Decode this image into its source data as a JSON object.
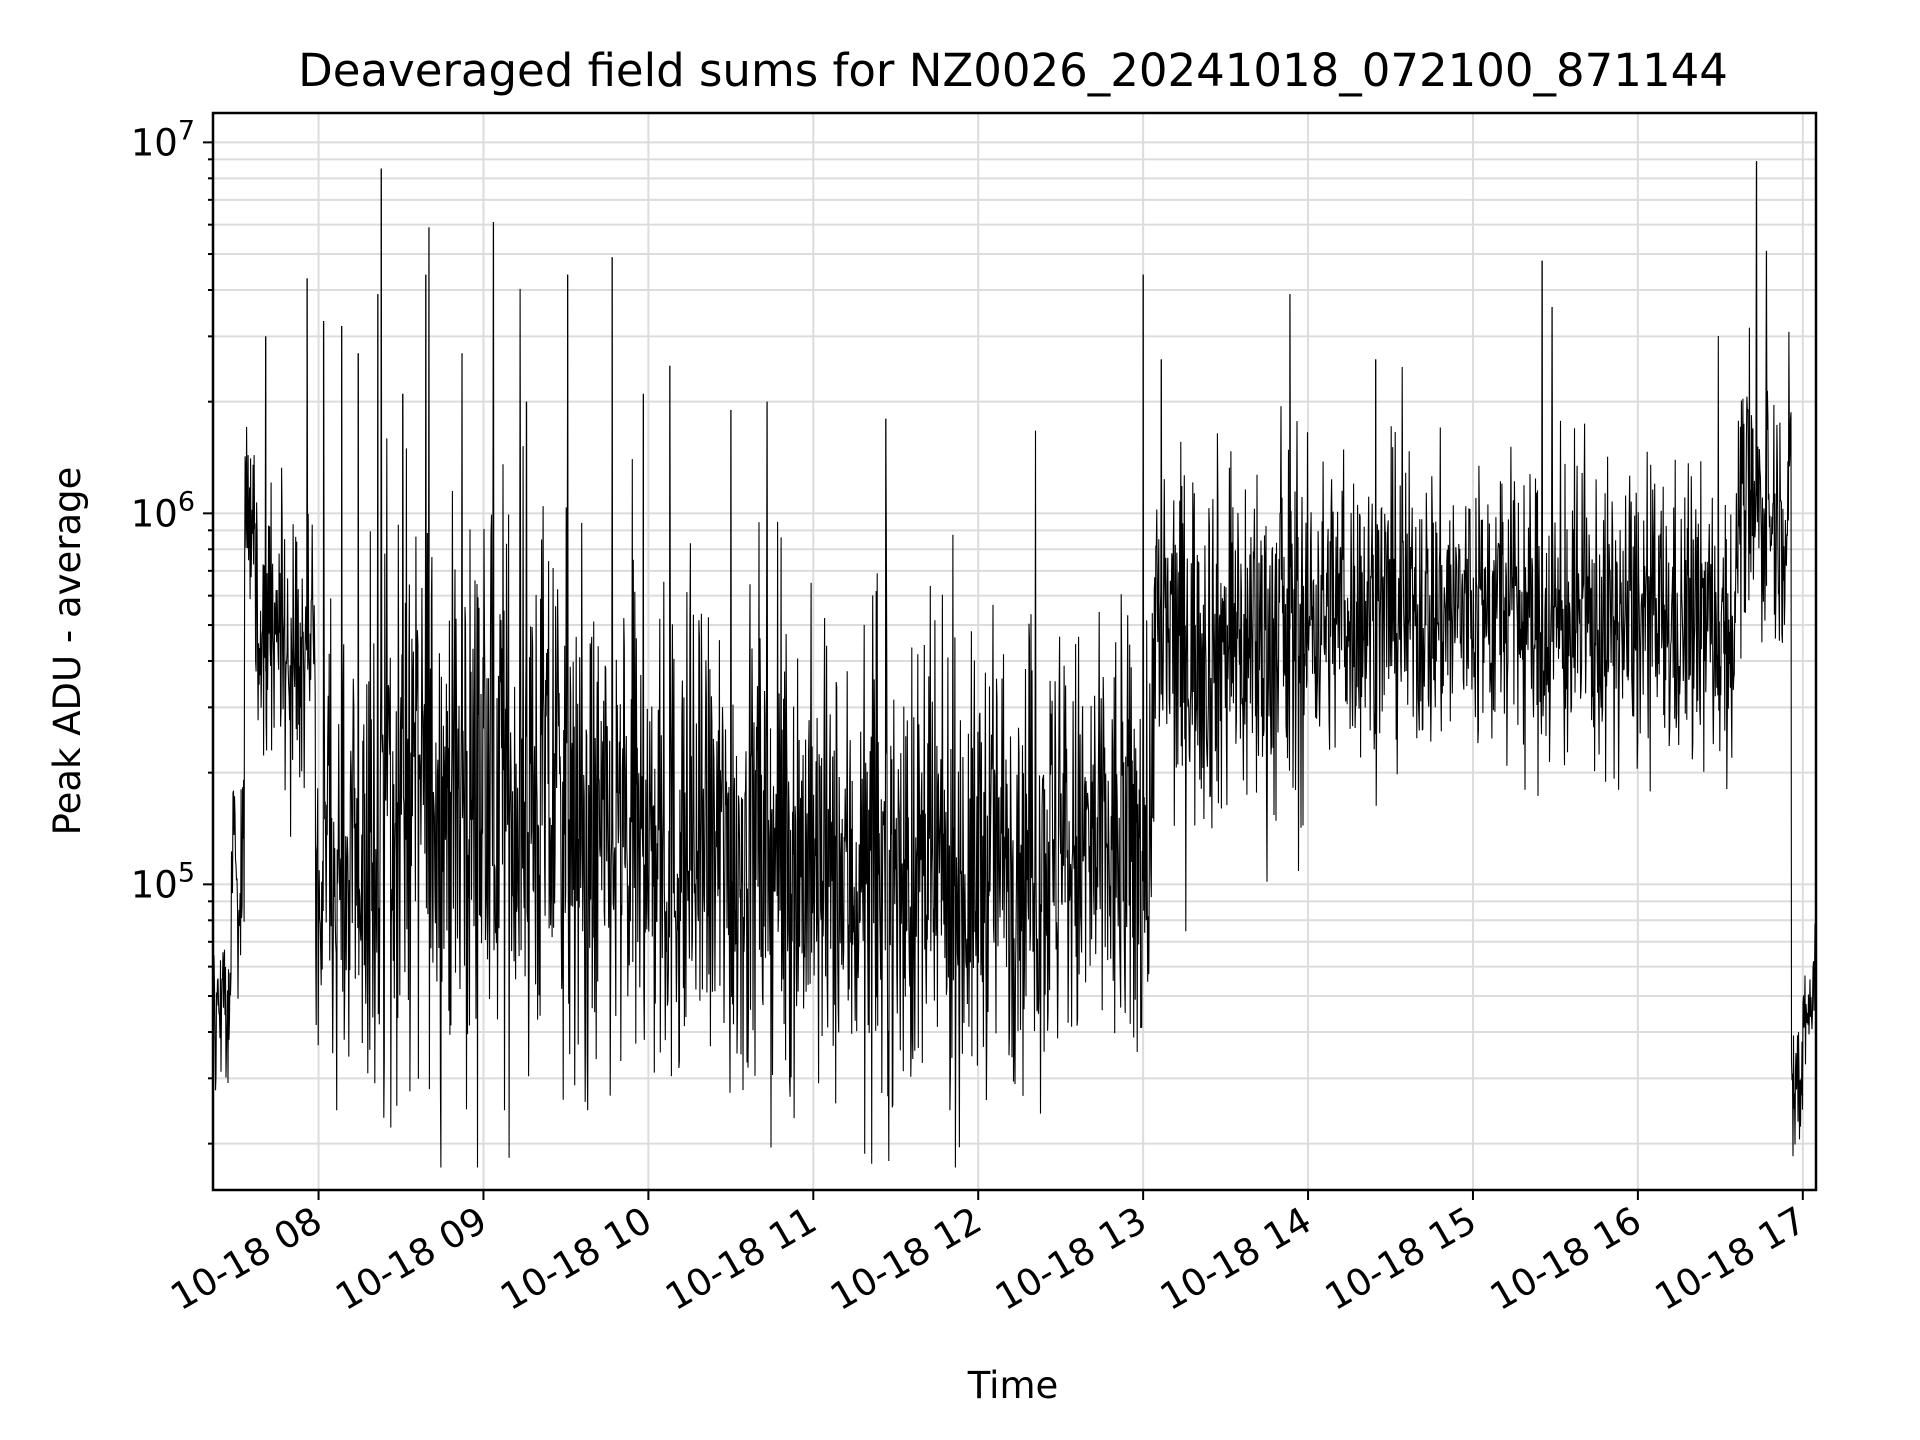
{
  "chart_data": {
    "type": "line",
    "title": "Deaveraged field sums for NZ0026_20241018_072100_871144",
    "xlabel": "Time",
    "ylabel": "Peak ADU - average",
    "x_tick_labels": [
      "10-18 08",
      "10-18 09",
      "10-18 10",
      "10-18 11",
      "10-18 12",
      "10-18 13",
      "10-18 14",
      "10-18 15",
      "10-18 16",
      "10-18 17"
    ],
    "x_tick_hours": [
      8,
      9,
      10,
      11,
      12,
      13,
      14,
      15,
      16,
      17
    ],
    "xlim_hours": [
      7.36,
      17.08
    ],
    "y_scale": "log",
    "ylim": [
      15000,
      12000000
    ],
    "y_major_ticks": [
      {
        "value": 100000,
        "base": "10",
        "exp": "5"
      },
      {
        "value": 1000000,
        "base": "10",
        "exp": "6"
      },
      {
        "value": 10000000,
        "base": "10",
        "exp": "7"
      }
    ],
    "grid": true,
    "legend": "none",
    "line_color": "#000000",
    "segments": [
      {
        "start": 7.36,
        "end": 7.47,
        "center": 45000,
        "spread": 0.22
      },
      {
        "start": 7.47,
        "end": 7.55,
        "center": 120000,
        "spread": 0.3
      },
      {
        "start": 7.55,
        "end": 7.62,
        "center": 1000000,
        "spread": 0.3
      },
      {
        "start": 7.62,
        "end": 7.98,
        "center": 450000,
        "spread": 0.35
      },
      {
        "start": 7.98,
        "end": 8.4,
        "center": 110000,
        "spread": 0.6
      },
      {
        "start": 8.4,
        "end": 9.5,
        "center": 170000,
        "spread": 0.75
      },
      {
        "start": 9.5,
        "end": 11.0,
        "center": 120000,
        "spread": 0.65
      },
      {
        "start": 11.0,
        "end": 12.0,
        "center": 100000,
        "spread": 0.6
      },
      {
        "start": 12.0,
        "end": 13.05,
        "center": 120000,
        "spread": 0.6
      },
      {
        "start": 13.05,
        "end": 14.0,
        "center": 450000,
        "spread": 0.5
      },
      {
        "start": 14.0,
        "end": 15.3,
        "center": 550000,
        "spread": 0.4
      },
      {
        "start": 15.3,
        "end": 16.6,
        "center": 500000,
        "spread": 0.4
      },
      {
        "start": 16.6,
        "end": 16.93,
        "center": 1000000,
        "spread": 0.35
      },
      {
        "start": 16.93,
        "end": 17.0,
        "center": 28000,
        "spread": 0.25
      },
      {
        "start": 17.0,
        "end": 17.08,
        "center": 45000,
        "spread": 0.2
      }
    ],
    "spikes": [
      {
        "x": 7.68,
        "y": 3000000
      },
      {
        "x": 7.93,
        "y": 4300000
      },
      {
        "x": 8.03,
        "y": 3300000
      },
      {
        "x": 8.14,
        "y": 3200000
      },
      {
        "x": 8.24,
        "y": 2700000
      },
      {
        "x": 8.36,
        "y": 3900000
      },
      {
        "x": 8.38,
        "y": 8500000
      },
      {
        "x": 8.51,
        "y": 2100000
      },
      {
        "x": 8.65,
        "y": 4400000
      },
      {
        "x": 8.67,
        "y": 5900000
      },
      {
        "x": 8.87,
        "y": 2700000
      },
      {
        "x": 9.06,
        "y": 6100000
      },
      {
        "x": 9.26,
        "y": 2000000
      },
      {
        "x": 9.51,
        "y": 4400000
      },
      {
        "x": 9.78,
        "y": 4900000
      },
      {
        "x": 9.97,
        "y": 2100000
      },
      {
        "x": 10.13,
        "y": 2500000
      },
      {
        "x": 10.5,
        "y": 1900000
      },
      {
        "x": 10.72,
        "y": 2000000
      },
      {
        "x": 11.44,
        "y": 1800000
      },
      {
        "x": 13.0,
        "y": 4400000
      },
      {
        "x": 13.11,
        "y": 2600000
      },
      {
        "x": 13.89,
        "y": 3900000
      },
      {
        "x": 14.41,
        "y": 2600000
      },
      {
        "x": 15.42,
        "y": 4800000
      },
      {
        "x": 15.48,
        "y": 3600000
      },
      {
        "x": 16.72,
        "y": 8900000
      },
      {
        "x": 16.78,
        "y": 5100000
      }
    ]
  }
}
